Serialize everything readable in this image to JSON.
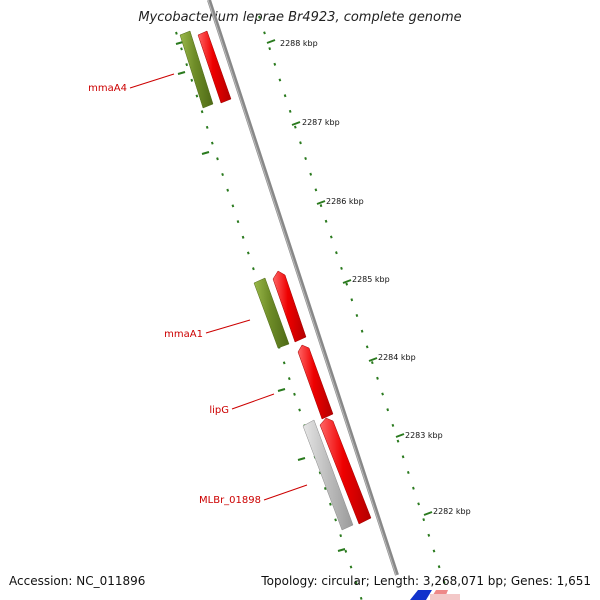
{
  "title": "Mycobacterium leprae Br4923, complete genome",
  "footer": {
    "accession": "Accession: NC_011896",
    "topology": "Topology: circular; Length: 3,268,071 bp; Genes: 1,651"
  },
  "ticks": [
    {
      "label": "2288 kbp"
    },
    {
      "label": "2287 kbp"
    },
    {
      "label": "2286 kbp"
    },
    {
      "label": "2285 kbp"
    },
    {
      "label": "2284 kbp"
    },
    {
      "label": "2283 kbp"
    },
    {
      "label": "2282 kbp"
    }
  ],
  "genes": [
    {
      "name": "mmaA4"
    },
    {
      "name": "mmaA1"
    },
    {
      "name": "lipG"
    },
    {
      "name": "MLBr_01898"
    }
  ],
  "colors": {
    "forward_cds": "#ee0000",
    "reverse_cds": "#6e8c28",
    "gray_feature": "#bdbdbd",
    "backbone": "#888888",
    "tick_green": "#2a7a1e",
    "label_red": "#cc0000"
  }
}
